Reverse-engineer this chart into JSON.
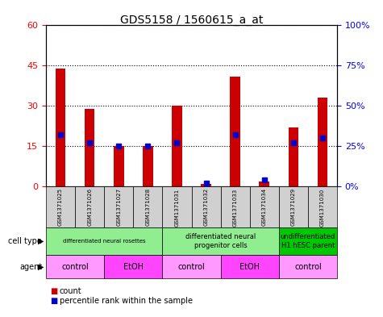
{
  "title": "GDS5158 / 1560615_a_at",
  "samples": [
    "GSM1371025",
    "GSM1371026",
    "GSM1371027",
    "GSM1371028",
    "GSM1371031",
    "GSM1371032",
    "GSM1371033",
    "GSM1371034",
    "GSM1371029",
    "GSM1371030"
  ],
  "count_values": [
    44,
    29,
    15,
    15,
    30,
    1,
    41,
    2,
    22,
    33
  ],
  "percentile_values": [
    32,
    27,
    25,
    25,
    27,
    2,
    32,
    4,
    27,
    30
  ],
  "ylim_left": [
    0,
    60
  ],
  "ylim_right": [
    0,
    100
  ],
  "yticks_left": [
    0,
    15,
    30,
    45,
    60
  ],
  "yticks_right": [
    0,
    25,
    50,
    75,
    100
  ],
  "ytick_labels_right": [
    "0%",
    "25%",
    "50%",
    "75%",
    "100%"
  ],
  "cell_type_groups": [
    {
      "label": "differentiated neural rosettes",
      "start": 0,
      "end": 3,
      "color": "#90EE90"
    },
    {
      "label": "differentiated neural\nprogenitor cells",
      "start": 4,
      "end": 7,
      "color": "#90EE90"
    },
    {
      "label": "undifferentiated\nH1 hESC parent",
      "start": 8,
      "end": 9,
      "color": "#00C800"
    }
  ],
  "agent_groups": [
    {
      "label": "control",
      "start": 0,
      "end": 1,
      "color": "#FF99FF"
    },
    {
      "label": "EtOH",
      "start": 2,
      "end": 3,
      "color": "#FF44FF"
    },
    {
      "label": "control",
      "start": 4,
      "end": 5,
      "color": "#FF99FF"
    },
    {
      "label": "EtOH",
      "start": 6,
      "end": 7,
      "color": "#FF44FF"
    },
    {
      "label": "control",
      "start": 8,
      "end": 9,
      "color": "#FF99FF"
    }
  ],
  "bar_color": "#CC0000",
  "dot_color": "#0000CC",
  "bg_color": "#FFFFFF",
  "grid_color": "#000000",
  "sample_bg": "#D0D0D0"
}
